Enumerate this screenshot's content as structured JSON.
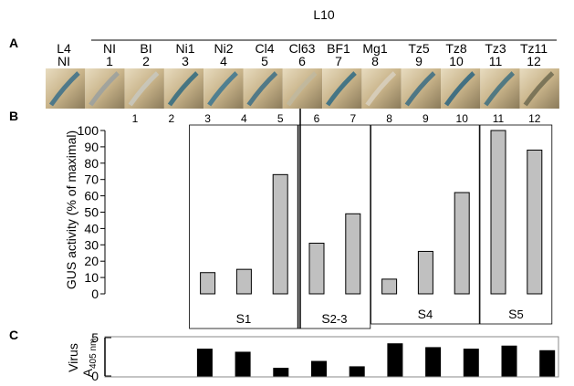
{
  "panel_labels": [
    "A",
    "B",
    "C"
  ],
  "photo_strip": {
    "title": "L10",
    "names": [
      "L4",
      "NI",
      "BI",
      "Ni1",
      "Ni2",
      "Cl4",
      "Cl63",
      "BF1",
      "Mg1",
      "Tz5",
      "Tz8",
      "Tz3",
      "Tz11"
    ],
    "numbers": [
      "NI",
      "1",
      "2",
      "3",
      "4",
      "5",
      "6",
      "7",
      "8",
      "9",
      "10",
      "11",
      "12"
    ]
  },
  "chart_data": [
    {
      "type": "bar",
      "y_label": "GUS activity (% of maximal)",
      "categories": [
        "1",
        "2",
        "3",
        "4",
        "5",
        "6",
        "7",
        "8",
        "9",
        "10",
        "11",
        "12"
      ],
      "values": [
        0,
        0,
        13,
        15,
        73,
        31,
        49,
        9,
        26,
        62,
        100,
        88
      ],
      "color": "#c0c0c0",
      "ylim": [
        0,
        100
      ],
      "yticks": [
        0,
        10,
        20,
        30,
        40,
        50,
        60,
        70,
        80,
        90,
        100
      ],
      "groups": [
        {
          "label": "S",
          "sub": "1",
          "first": "3",
          "last": "5"
        },
        {
          "label": "S",
          "sub": "2-3",
          "first": "6",
          "last": "7"
        },
        {
          "label": "S",
          "sub": "4",
          "first": "8",
          "last": "10"
        },
        {
          "label": "S",
          "sub": "5",
          "first": "11",
          "last": "12"
        }
      ]
    },
    {
      "type": "bar",
      "y_label": "Virus",
      "y_label_2": "A",
      "y_label_2_sub": "405 nm",
      "values": [
        0,
        0,
        3.5,
        3.1,
        1.0,
        1.9,
        1.2,
        4.2,
        3.7,
        3.5,
        3.9,
        3.3
      ],
      "color": "#000000",
      "ylim": [
        0,
        5
      ],
      "yticks": [
        0,
        5
      ]
    }
  ]
}
